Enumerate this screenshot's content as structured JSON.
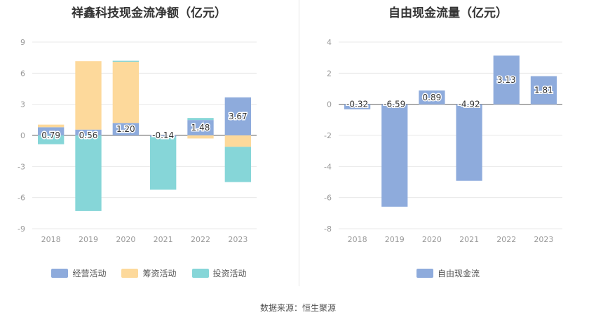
{
  "chart_data": [
    {
      "type": "bar",
      "stacked": true,
      "title": "祥鑫科技现金流净额（亿元）",
      "categories": [
        "2018",
        "2019",
        "2020",
        "2021",
        "2022",
        "2023"
      ],
      "ylim": [
        -9,
        9
      ],
      "yticks": [
        9,
        6,
        3,
        0,
        -3,
        -6,
        -9
      ],
      "grid": true,
      "legend_position": "bottom",
      "series": [
        {
          "name": "经营活动",
          "color": "#8eabdc",
          "values": [
            0.79,
            0.56,
            1.2,
            -0.14,
            1.48,
            3.67
          ]
        },
        {
          "name": "筹资活动",
          "color": "#fdd99b",
          "values": [
            0.25,
            6.6,
            5.9,
            0.0,
            -0.3,
            -1.1
          ]
        },
        {
          "name": "投资活动",
          "color": "#86d6d8",
          "values": [
            -0.85,
            -7.3,
            0.1,
            -5.1,
            0.2,
            -3.4
          ]
        }
      ],
      "data_labels": [
        "0.79",
        "0.56",
        "1.20",
        "-0.14",
        "1.48",
        "3.67"
      ]
    },
    {
      "type": "bar",
      "title": "自由现金流量（亿元）",
      "categories": [
        "2018",
        "2019",
        "2020",
        "2021",
        "2022",
        "2023"
      ],
      "ylim": [
        -8,
        4
      ],
      "yticks": [
        4,
        2,
        0,
        -2,
        -4,
        -6,
        -8
      ],
      "grid": true,
      "legend_position": "bottom",
      "series": [
        {
          "name": "自由现金流",
          "color": "#8eabdc",
          "values": [
            -0.32,
            -6.59,
            0.89,
            -4.92,
            3.13,
            1.81
          ]
        }
      ],
      "data_labels": [
        "-0.32",
        "-6.59",
        "0.89",
        "-4.92",
        "3.13",
        "1.81"
      ]
    }
  ],
  "footer": {
    "source": "数据来源：恒生聚源"
  }
}
